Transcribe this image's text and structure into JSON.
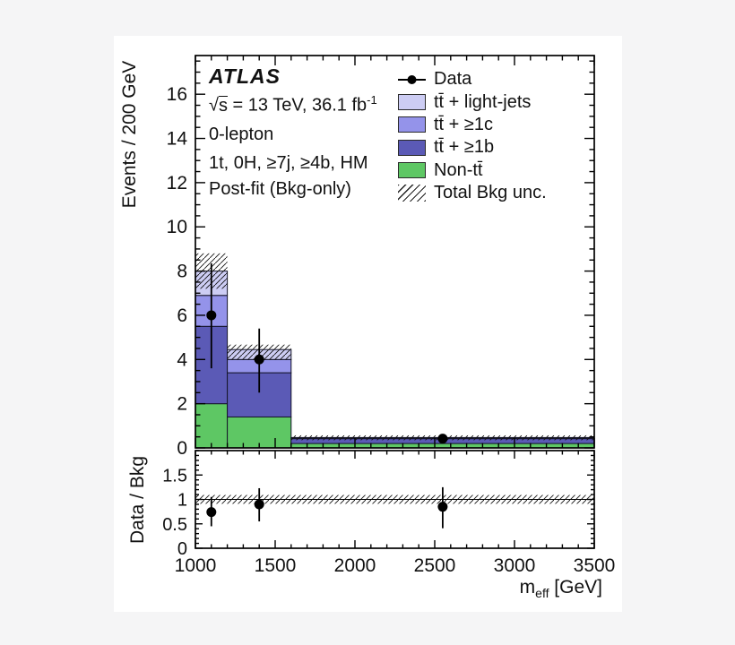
{
  "figure": {
    "background": "#f5f5f6",
    "surface": "#ffffff"
  },
  "annotations": {
    "experiment": "ATLAS",
    "lumi": {
      "sqrt": "√",
      "s": "s",
      "rest": " = 13 TeV, 36.1 fb",
      "exp": "-1"
    },
    "channel": "0-lepton",
    "selection": "1t, 0H, ≥7j, ≥4b, HM",
    "fit_label": "Post-fit (Bkg-only)"
  },
  "axes": {
    "main_y_label": "Events / 200 GeV",
    "ratio_y_label": "Data / Bkg",
    "x_title_main": "m",
    "x_title_sub": "eff",
    "x_title_unit": " [GeV]"
  },
  "legend": {
    "items": [
      {
        "label": "Data",
        "type": "marker"
      },
      {
        "label": "tt̄ + light-jets",
        "type": "fill",
        "color": "#cdcdf4"
      },
      {
        "label": "tt̄ + ≥1c",
        "type": "fill",
        "color": "#9493ea"
      },
      {
        "label": "tt̄ + ≥1b",
        "type": "fill",
        "color": "#5b5ab6"
      },
      {
        "label": "Non-tt̄",
        "type": "fill",
        "color": "#5ec764"
      },
      {
        "label": "Total Bkg unc.",
        "type": "hatch"
      }
    ]
  },
  "chart_data": {
    "type": "bar",
    "subtype": "stacked-histogram-with-ratio-panel",
    "title": "ATLAS 0-lepton, 1t, 0H, ≥7j, ≥4b, HM, Post-fit (Bkg-only)",
    "xlabel": "m_eff [GeV]",
    "ylabel": "Events / 200 GeV",
    "ratio_ylabel": "Data / Bkg",
    "x_edges": [
      1000,
      1200,
      1600,
      3500
    ],
    "xlim": [
      1000,
      3500
    ],
    "ylim": [
      0,
      17.75
    ],
    "ratio_ylim": [
      0,
      2.0
    ],
    "grid": false,
    "legend_position": "top-right-inside",
    "series": [
      {
        "name": "Non-tt̄",
        "color": "#5ec764",
        "values": [
          2.0,
          1.4,
          0.2
        ]
      },
      {
        "name": "tt̄ + ≥1b",
        "color": "#5b5ab6",
        "values": [
          3.5,
          2.0,
          0.22
        ]
      },
      {
        "name": "tt̄ + ≥1c",
        "color": "#9493ea",
        "values": [
          1.4,
          0.6,
          0.03
        ]
      },
      {
        "name": "tt̄ + light-jets",
        "color": "#cdcdf4",
        "values": [
          1.1,
          0.45,
          0.02
        ]
      }
    ],
    "total_bkg": [
      8.0,
      4.45,
      0.47
    ],
    "bkg_unc_band": [
      [
        7.2,
        8.8
      ],
      [
        3.98,
        4.67
      ],
      [
        0.35,
        0.57
      ]
    ],
    "data_points": [
      {
        "x": 1100,
        "y": 6.0,
        "y_lo": 3.6,
        "y_hi": 8.35
      },
      {
        "x": 1400,
        "y": 4.0,
        "y_lo": 2.5,
        "y_hi": 5.4
      },
      {
        "x": 2550,
        "y": 0.42,
        "y_lo": 0.2,
        "y_hi": 0.62
      }
    ],
    "ratio_points": [
      {
        "x": 1100,
        "y": 0.74,
        "y_lo": 0.45,
        "y_hi": 1.05
      },
      {
        "x": 1400,
        "y": 0.9,
        "y_lo": 0.55,
        "y_hi": 1.23
      },
      {
        "x": 2550,
        "y": 0.85,
        "y_lo": 0.41,
        "y_hi": 1.25
      }
    ],
    "ratio_unc_band": [
      0.91,
      1.09
    ],
    "main_y_ticks": {
      "major": [
        0,
        2,
        4,
        6,
        8,
        10,
        12,
        14,
        16
      ],
      "minor_step": 0.5
    },
    "x_ticks": {
      "major": [
        1000,
        1500,
        2000,
        2500,
        3000,
        3500
      ],
      "minor_step": 100
    },
    "ratio_y_ticks": {
      "major_values": [
        0,
        0.5,
        1,
        1.5
      ],
      "major_labels": [
        "0",
        "0.5",
        "1",
        "1.5"
      ],
      "minor_step": 0.1
    }
  }
}
